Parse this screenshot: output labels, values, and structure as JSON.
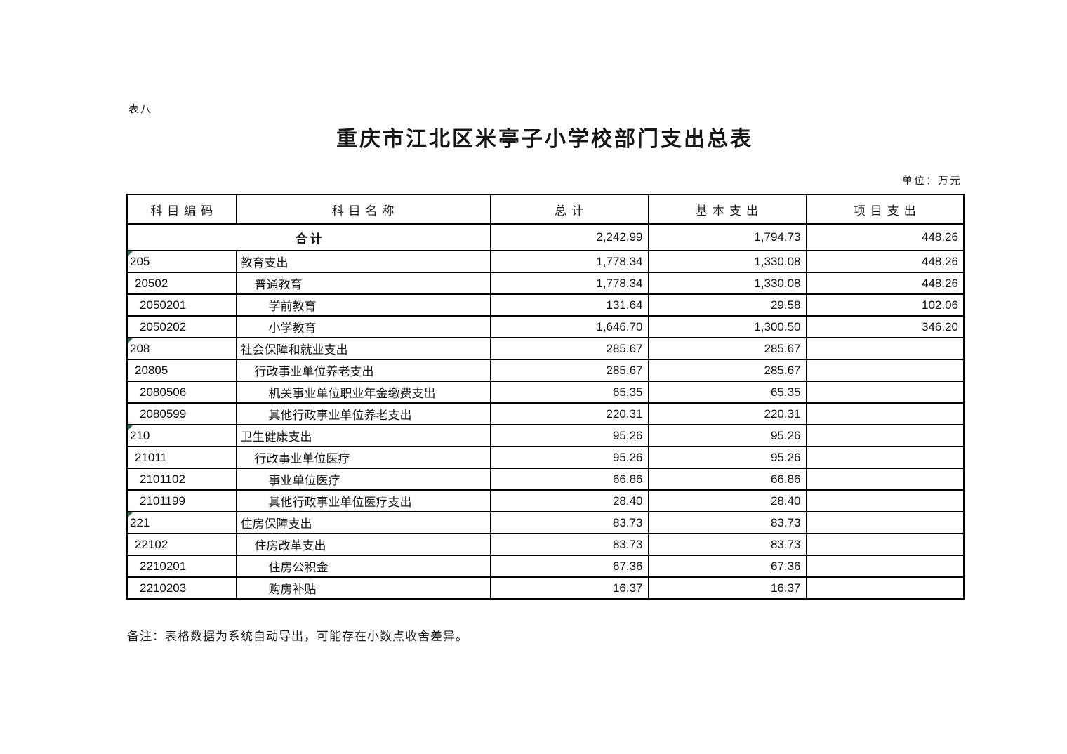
{
  "page": {
    "table_label": "表八",
    "title": "重庆市江北区米亭子小学校部门支出总表",
    "unit_note": "单位：万元",
    "footer_note": "备注：表格数据为系统自动导出，可能存在小数点收舍差异。"
  },
  "table": {
    "columns": [
      "科目编码",
      "科目名称",
      "总计",
      "基本支出",
      "项目支出"
    ],
    "flag_color": "#1e7145",
    "total_row": {
      "label": "合计",
      "total": "2,242.99",
      "basic": "1,794.73",
      "project": "448.26"
    },
    "rows": [
      {
        "code": "205",
        "name": "教育支出",
        "level": 1,
        "flag": true,
        "total": "1,778.34",
        "basic": "1,330.08",
        "project": "448.26"
      },
      {
        "code": "20502",
        "name": "普通教育",
        "level": 2,
        "flag": false,
        "total": "1,778.34",
        "basic": "1,330.08",
        "project": "448.26"
      },
      {
        "code": "2050201",
        "name": "学前教育",
        "level": 3,
        "flag": false,
        "total": "131.64",
        "basic": "29.58",
        "project": "102.06"
      },
      {
        "code": "2050202",
        "name": "小学教育",
        "level": 3,
        "flag": false,
        "total": "1,646.70",
        "basic": "1,300.50",
        "project": "346.20"
      },
      {
        "code": "208",
        "name": "社会保障和就业支出",
        "level": 1,
        "flag": true,
        "total": "285.67",
        "basic": "285.67",
        "project": ""
      },
      {
        "code": "20805",
        "name": "行政事业单位养老支出",
        "level": 2,
        "flag": false,
        "total": "285.67",
        "basic": "285.67",
        "project": ""
      },
      {
        "code": "2080506",
        "name": "机关事业单位职业年金缴费支出",
        "level": 3,
        "flag": false,
        "total": "65.35",
        "basic": "65.35",
        "project": ""
      },
      {
        "code": "2080599",
        "name": "其他行政事业单位养老支出",
        "level": 3,
        "flag": false,
        "total": "220.31",
        "basic": "220.31",
        "project": ""
      },
      {
        "code": "210",
        "name": "卫生健康支出",
        "level": 1,
        "flag": true,
        "total": "95.26",
        "basic": "95.26",
        "project": ""
      },
      {
        "code": "21011",
        "name": "行政事业单位医疗",
        "level": 2,
        "flag": false,
        "total": "95.26",
        "basic": "95.26",
        "project": ""
      },
      {
        "code": "2101102",
        "name": "事业单位医疗",
        "level": 3,
        "flag": false,
        "total": "66.86",
        "basic": "66.86",
        "project": ""
      },
      {
        "code": "2101199",
        "name": "其他行政事业单位医疗支出",
        "level": 3,
        "flag": false,
        "total": "28.40",
        "basic": "28.40",
        "project": ""
      },
      {
        "code": "221",
        "name": "住房保障支出",
        "level": 1,
        "flag": true,
        "total": "83.73",
        "basic": "83.73",
        "project": ""
      },
      {
        "code": "22102",
        "name": "住房改革支出",
        "level": 2,
        "flag": false,
        "total": "83.73",
        "basic": "83.73",
        "project": ""
      },
      {
        "code": "2210201",
        "name": "住房公积金",
        "level": 3,
        "flag": false,
        "total": "67.36",
        "basic": "67.36",
        "project": ""
      },
      {
        "code": "2210203",
        "name": "购房补贴",
        "level": 3,
        "flag": false,
        "total": "16.37",
        "basic": "16.37",
        "project": ""
      }
    ]
  }
}
